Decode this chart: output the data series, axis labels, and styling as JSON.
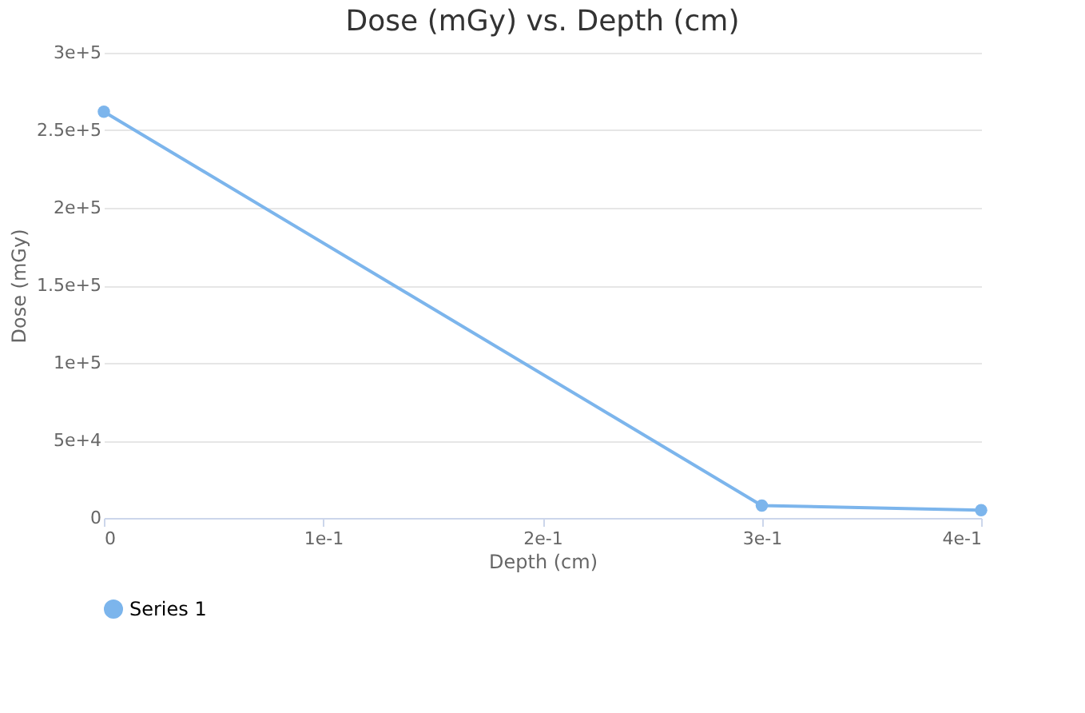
{
  "chart_data": {
    "type": "line",
    "title": "Dose (mGy) vs. Depth (cm)",
    "xlabel": "Depth (cm)",
    "ylabel": "Dose (mGy)",
    "x": [
      0,
      0.3,
      0.4
    ],
    "series": [
      {
        "name": "Series 1",
        "color": "#7cb5ec",
        "values": [
          262000,
          8000,
          5000
        ]
      }
    ],
    "xlim": [
      0,
      0.4
    ],
    "xticks": [
      0,
      {
        "value": 0.1,
        "label": "1e-1"
      },
      {
        "value": 0.2,
        "label": "2e-1"
      },
      {
        "value": 0.3,
        "label": "3e-1"
      },
      {
        "value": 0.4,
        "label": "4e-1"
      }
    ],
    "ylim": [
      0,
      300000
    ],
    "yticks": [
      0,
      {
        "value": 50000,
        "label": "5e+4"
      },
      {
        "value": 100000,
        "label": "1e+5"
      },
      {
        "value": 150000,
        "label": "1.5e+5"
      },
      {
        "value": 200000,
        "label": "2e+5"
      },
      {
        "value": 250000,
        "label": "2.5e+5"
      },
      {
        "value": 300000,
        "label": "3e+5"
      }
    ],
    "grid": "y",
    "legend": "bottom",
    "marker": "circle",
    "line_style": "solid"
  }
}
